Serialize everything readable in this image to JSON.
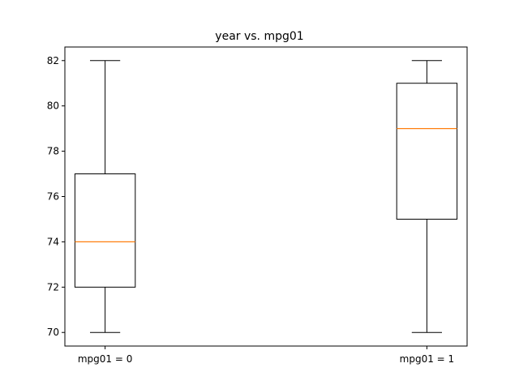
{
  "chart_data": {
    "type": "box",
    "title": "year vs. mpg01",
    "xlabel": "",
    "ylabel": "",
    "ylim": [
      69.4,
      82.6
    ],
    "yticks": [
      70,
      72,
      74,
      76,
      78,
      80,
      82
    ],
    "grid": false,
    "categories": [
      "mpg01 = 0",
      "mpg01 = 1"
    ],
    "boxes": [
      {
        "label": "mpg01 = 0",
        "whisker_low": 70,
        "q1": 72,
        "median": 74,
        "q3": 77,
        "whisker_high": 82
      },
      {
        "label": "mpg01 = 1",
        "whisker_low": 70,
        "q1": 75,
        "median": 79,
        "q3": 81,
        "whisker_high": 82
      }
    ],
    "colors": {
      "box": "#000000",
      "median": "#ff7f0e",
      "axes": "#000000"
    }
  }
}
